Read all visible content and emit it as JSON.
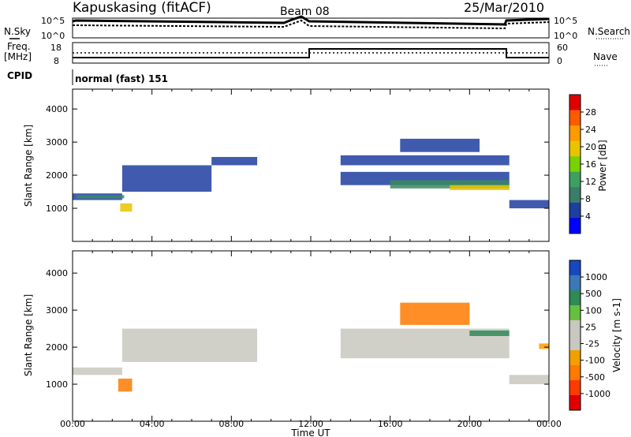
{
  "header": {
    "station": "Kapuskasing (fitACF)",
    "beam": "Beam 08",
    "date": "25/Mar/2010"
  },
  "noise_panel": {
    "left_label": "N.Sky",
    "right_label": "N.Search",
    "left_ticks": [
      "10^5",
      "10^0"
    ],
    "right_ticks": [
      "10^5",
      "10^0"
    ]
  },
  "freq_panel": {
    "left_label_1": "Freq.",
    "left_label_2": "[MHz]",
    "right_label": "Nave",
    "left_ticks": [
      "18",
      "8"
    ],
    "right_ticks": [
      "60",
      "0"
    ]
  },
  "cpid": {
    "label": "CPID",
    "value": "normal (fast) 151"
  },
  "axes": {
    "xlabel": "Time UT",
    "xticks": [
      "00:00",
      "04:00",
      "08:00",
      "12:00",
      "16:00",
      "20:00",
      "00:00"
    ],
    "ylabel": "Slant Range [km]",
    "yticks": [
      "4000",
      "3000",
      "2000",
      "1000"
    ]
  },
  "colorbars": {
    "power": {
      "label": "Power [dB]",
      "tick_labels": [
        "28",
        "24",
        "20",
        "16",
        "12",
        "8",
        "4"
      ],
      "colors": [
        "#e00000",
        "#ff5a00",
        "#ff9a00",
        "#e8c400",
        "#7ad000",
        "#3ea060",
        "#3a7e6a",
        "#1e3ea0",
        "#0000ff"
      ]
    },
    "velocity": {
      "label": "Velocity [m s-1]",
      "tick_labels": [
        "1000",
        "500",
        "100",
        "25",
        "-25",
        "-100",
        "-500",
        "-1000"
      ],
      "colors": [
        "#1848c0",
        "#3a78b8",
        "#2e8a56",
        "#66c040",
        "#c8c8c0",
        "#c8c8c0",
        "#f0a000",
        "#ff7a00",
        "#ff3a00",
        "#e00000"
      ]
    }
  },
  "chart_data": [
    {
      "type": "heatmap",
      "name": "power",
      "x_unit": "hour UT",
      "y_unit": "km",
      "xlim": [
        0,
        24
      ],
      "ylim": [
        0,
        4600
      ],
      "bands": [
        {
          "t0": 0.0,
          "t1": 2.5,
          "r0": 1250,
          "r1": 1450,
          "color": "#2040b0"
        },
        {
          "t0": 0.2,
          "t1": 2.6,
          "r0": 1300,
          "r1": 1400,
          "color": "#3a8a60"
        },
        {
          "t0": 2.4,
          "t1": 3.0,
          "r0": 900,
          "r1": 1150,
          "color": "#e8c400"
        },
        {
          "t0": 2.5,
          "t1": 7.0,
          "r0": 1500,
          "r1": 2300,
          "color": "#1e3ea0"
        },
        {
          "t0": 7.0,
          "t1": 9.3,
          "r0": 2300,
          "r1": 2550,
          "color": "#1e3ea0"
        },
        {
          "t0": 13.5,
          "t1": 22.0,
          "r0": 2300,
          "r1": 2600,
          "color": "#1e3ea0"
        },
        {
          "t0": 13.5,
          "t1": 22.0,
          "r0": 1700,
          "r1": 2100,
          "color": "#1e3ea0"
        },
        {
          "t0": 16.0,
          "t1": 22.0,
          "r0": 1600,
          "r1": 1850,
          "color": "#3a8a60"
        },
        {
          "t0": 19.0,
          "t1": 22.0,
          "r0": 1550,
          "r1": 1700,
          "color": "#e8c400"
        },
        {
          "t0": 16.5,
          "t1": 20.5,
          "r0": 2700,
          "r1": 3100,
          "color": "#1e3ea0"
        },
        {
          "t0": 22.0,
          "t1": 24.0,
          "r0": 1000,
          "r1": 1250,
          "color": "#1e3ea0"
        }
      ]
    },
    {
      "type": "heatmap",
      "name": "velocity",
      "x_unit": "hour UT",
      "y_unit": "km",
      "xlim": [
        0,
        24
      ],
      "ylim": [
        0,
        4600
      ],
      "bands": [
        {
          "t0": 0.0,
          "t1": 2.5,
          "r0": 1250,
          "r1": 1450,
          "color": "#c8c8c0"
        },
        {
          "t0": 2.5,
          "t1": 9.3,
          "r0": 1600,
          "r1": 2500,
          "color": "#c8c8c0"
        },
        {
          "t0": 2.3,
          "t1": 3.0,
          "r0": 800,
          "r1": 1150,
          "color": "#ff7a00"
        },
        {
          "t0": 13.5,
          "t1": 22.0,
          "r0": 1700,
          "r1": 2500,
          "color": "#c8c8c0"
        },
        {
          "t0": 16.5,
          "t1": 20.0,
          "r0": 2600,
          "r1": 3200,
          "color": "#ff7a00"
        },
        {
          "t0": 20.0,
          "t1": 22.0,
          "r0": 2300,
          "r1": 2450,
          "color": "#2e8a56"
        },
        {
          "t0": 22.0,
          "t1": 24.0,
          "r0": 1000,
          "r1": 1250,
          "color": "#c8c8c0"
        },
        {
          "t0": 23.5,
          "t1": 24.0,
          "r0": 1950,
          "r1": 2100,
          "color": "#ff9a00"
        }
      ]
    }
  ]
}
